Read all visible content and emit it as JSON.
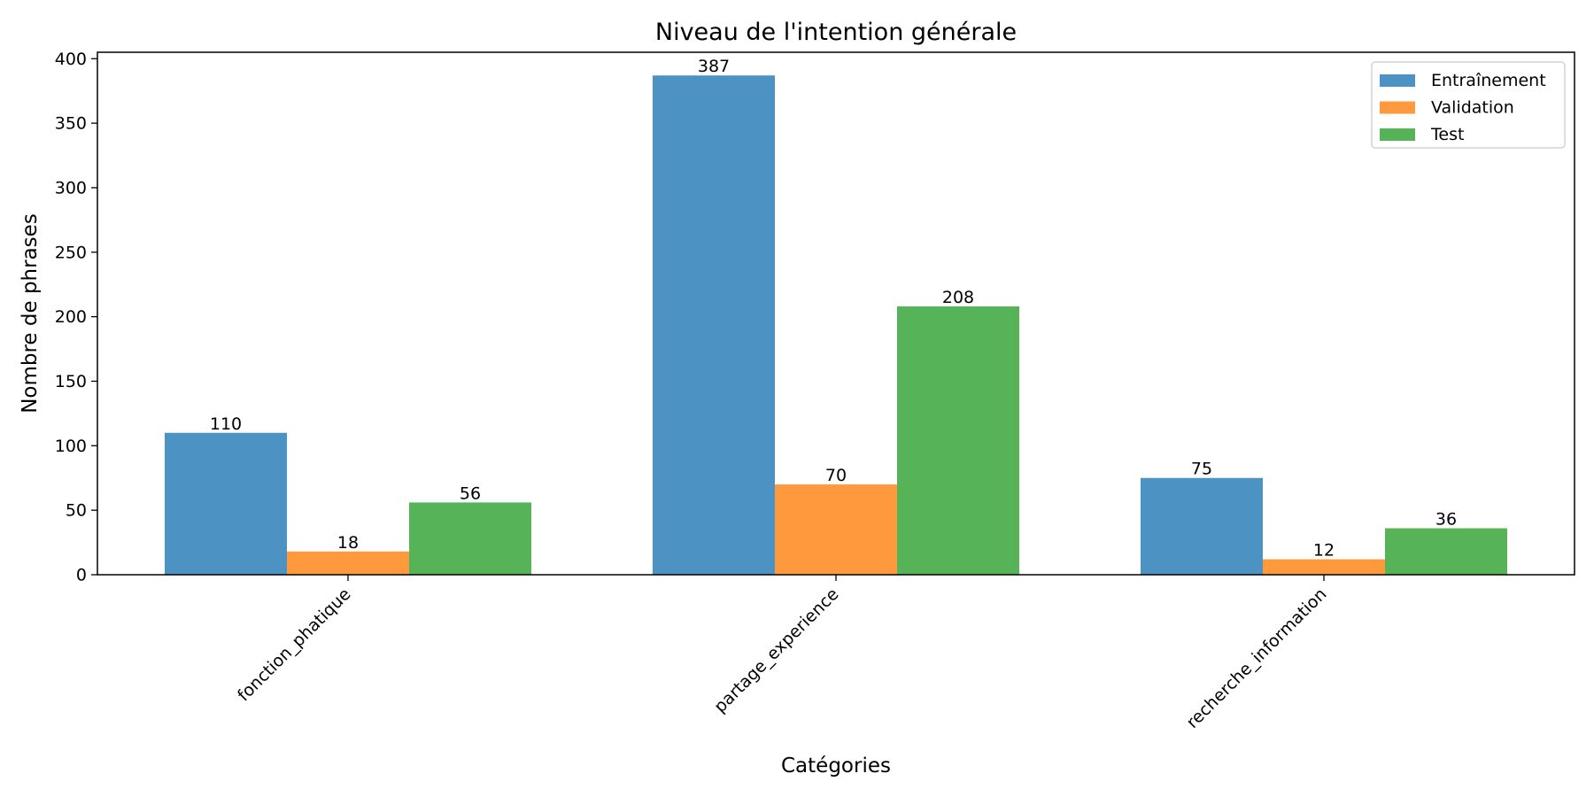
{
  "chart_data": {
    "type": "bar",
    "title": "Niveau de l'intention générale",
    "xlabel": "Catégories",
    "ylabel": "Nombre de phrases",
    "categories": [
      "fonction_phatique",
      "partage_experience",
      "recherche_information"
    ],
    "series": [
      {
        "name": "Entraînement",
        "values": [
          110,
          387,
          75
        ],
        "color": "#4c92c3"
      },
      {
        "name": "Validation",
        "values": [
          18,
          70,
          12
        ],
        "color": "#ff993e"
      },
      {
        "name": "Test",
        "values": [
          56,
          208,
          36
        ],
        "color": "#56b357"
      }
    ],
    "ylim": [
      0,
      405
    ],
    "yticks": [
      0,
      50,
      100,
      150,
      200,
      250,
      300,
      350,
      400
    ],
    "grid": false,
    "legend_position": "top-right",
    "x_tick_rotation_deg": 45
  }
}
